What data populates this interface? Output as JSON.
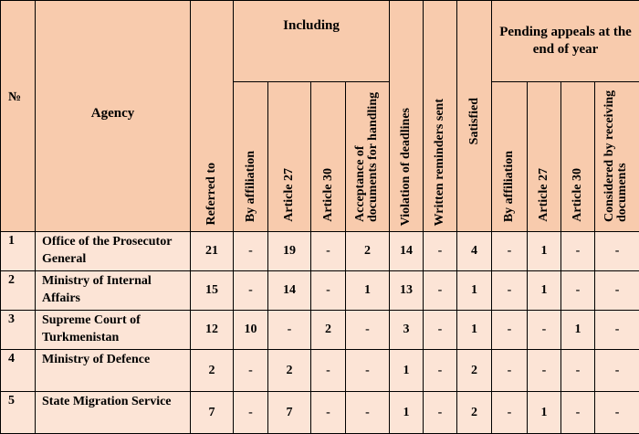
{
  "headers": {
    "no": "№",
    "agency": "Agency",
    "referred_to": "Referred to",
    "including": "Including",
    "including_sub": [
      "By affiliation",
      "Article 27",
      "Article 30",
      "Acceptance of documents for handling"
    ],
    "violation": "Violation of deadlines",
    "reminders": "Written reminders sent",
    "satisfied": "Satisfied",
    "pending": "Pending appeals at the end of year",
    "pending_sub": [
      "By affiliation",
      "Article 27",
      "Article 30",
      "Considered by receiving documents"
    ]
  },
  "rows": [
    {
      "no": "1",
      "agency": "Office of the Prosecutor General",
      "values": [
        "21",
        "-",
        "19",
        "-",
        "2",
        "14",
        "-",
        "4",
        "-",
        "1",
        "-",
        "-"
      ]
    },
    {
      "no": "2",
      "agency": "Ministry of Internal Affairs",
      "values": [
        "15",
        "-",
        "14",
        "-",
        "1",
        "13",
        "-",
        "1",
        "-",
        "1",
        "-",
        "-"
      ]
    },
    {
      "no": "3",
      "agency": "Supreme Court of Turkmenistan",
      "values": [
        "12",
        "10",
        "-",
        "2",
        "-",
        "3",
        "-",
        "1",
        "-",
        "-",
        "1",
        "-"
      ]
    },
    {
      "no": "4",
      "agency": "Ministry of Defence",
      "values": [
        "2",
        "-",
        "2",
        "-",
        "-",
        "1",
        "-",
        "2",
        "-",
        "-",
        "-",
        "-"
      ]
    },
    {
      "no": "5",
      "agency": "State Migration Service",
      "values": [
        "7",
        "-",
        "7",
        "-",
        "-",
        "1",
        "-",
        "2",
        "-",
        "1",
        "-",
        "-"
      ]
    }
  ]
}
